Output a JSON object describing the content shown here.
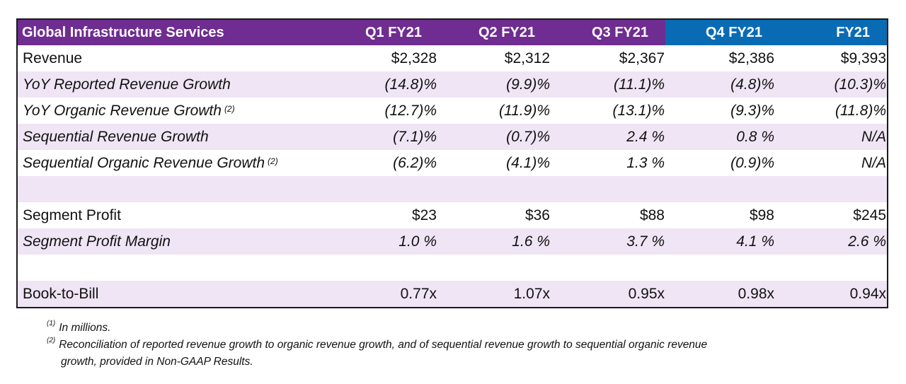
{
  "colors": {
    "header_purple": "#6f2c91",
    "header_blue": "#0a6bb5",
    "stripe": "#efe5f5",
    "border": "#1a1a1a"
  },
  "table": {
    "title": "Global Infrastructure Services",
    "columns": [
      "Q1 FY21",
      "Q2 FY21",
      "Q3 FY21",
      "Q4 FY21",
      "FY21"
    ],
    "rows": [
      {
        "label": "Revenue",
        "footnote": "",
        "italic": false,
        "values": [
          "$2,328",
          "$2,312",
          "$2,367",
          "$2,386",
          "$9,393"
        ]
      },
      {
        "label": "YoY Reported Revenue Growth",
        "footnote": "",
        "italic": true,
        "values": [
          "(14.8)%",
          "(9.9)%",
          "(11.1)%",
          "(4.8)%",
          "(10.3)%"
        ]
      },
      {
        "label": "YoY Organic Revenue Growth",
        "footnote": "(2)",
        "italic": true,
        "values": [
          "(12.7)%",
          "(11.9)%",
          "(13.1)%",
          "(9.3)%",
          "(11.8)%"
        ]
      },
      {
        "label": "Sequential Revenue Growth",
        "footnote": "",
        "italic": true,
        "values": [
          "(7.1)%",
          "(0.7)%",
          "2.4 %",
          "0.8 %",
          "N/A"
        ]
      },
      {
        "label": "Sequential Organic Revenue Growth",
        "footnote": "(2)",
        "italic": true,
        "values": [
          "(6.2)%",
          "(4.1)%",
          "1.3 %",
          "(0.9)%",
          "N/A"
        ]
      },
      {
        "label": "",
        "footnote": "",
        "italic": false,
        "values": [
          "",
          "",
          "",
          "",
          ""
        ]
      },
      {
        "label": "Segment Profit",
        "footnote": "",
        "italic": false,
        "values": [
          "$23",
          "$36",
          "$88",
          "$98",
          "$245"
        ]
      },
      {
        "label": "Segment Profit Margin",
        "footnote": "",
        "italic": true,
        "values": [
          "1.0 %",
          "1.6 %",
          "3.7 %",
          "4.1 %",
          "2.6 %"
        ]
      },
      {
        "label": "",
        "footnote": "",
        "italic": false,
        "values": [
          "",
          "",
          "",
          "",
          ""
        ]
      },
      {
        "label": "Book-to-Bill",
        "footnote": "",
        "italic": false,
        "values": [
          "0.77x",
          "1.07x",
          "0.95x",
          "0.98x",
          "0.94x"
        ]
      }
    ]
  },
  "footnotes": [
    {
      "marker": "(1)",
      "text": "In millions."
    },
    {
      "marker": "(2)",
      "text": "Reconciliation of reported revenue growth to organic revenue growth, and of sequential revenue growth to sequential organic revenue",
      "continuation": "growth, provided in Non-GAAP Results."
    }
  ]
}
